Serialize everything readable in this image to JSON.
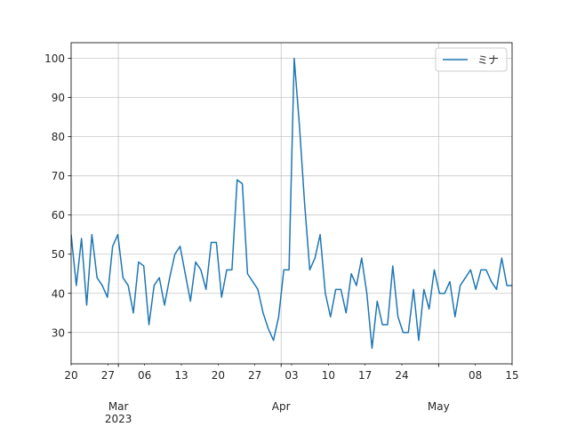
{
  "chart_data": {
    "type": "line",
    "title": "",
    "xlabel": "",
    "ylabel": "",
    "x_start": "2023-02-20",
    "x_end": "2023-05-15",
    "xlim": [
      "2023-02-20",
      "2023-05-15"
    ],
    "ylim": [
      22,
      104
    ],
    "grid": true,
    "legend_position": "top-right",
    "x_minor_ticks": [
      {
        "date": "2023-02-20",
        "label": "20"
      },
      {
        "date": "2023-02-27",
        "label": "27"
      },
      {
        "date": "2023-03-06",
        "label": "06"
      },
      {
        "date": "2023-03-13",
        "label": "13"
      },
      {
        "date": "2023-03-20",
        "label": "20"
      },
      {
        "date": "2023-03-27",
        "label": "27"
      },
      {
        "date": "2023-04-03",
        "label": "03"
      },
      {
        "date": "2023-04-10",
        "label": "10"
      },
      {
        "date": "2023-04-17",
        "label": "17"
      },
      {
        "date": "2023-04-24",
        "label": "24"
      },
      {
        "date": "2023-05-08",
        "label": "08"
      },
      {
        "date": "2023-05-15",
        "label": "15"
      }
    ],
    "x_major_ticks": [
      {
        "date": "2023-03-01",
        "label": "Mar",
        "sublabel": "2023"
      },
      {
        "date": "2023-04-01",
        "label": "Apr",
        "sublabel": ""
      },
      {
        "date": "2023-05-01",
        "label": "May",
        "sublabel": ""
      }
    ],
    "y_ticks": [
      30,
      40,
      50,
      60,
      70,
      80,
      90,
      100
    ],
    "series": [
      {
        "name": "ミナ",
        "color": "#1f77b4",
        "values": [
          55,
          42,
          54,
          37,
          55,
          44,
          42,
          39,
          52,
          55,
          44,
          42,
          35,
          48,
          47,
          32,
          42,
          44,
          37,
          44,
          50,
          52,
          45,
          38,
          48,
          46,
          41,
          53,
          53,
          39,
          46,
          46,
          69,
          68,
          45,
          43,
          41,
          35,
          31,
          28,
          34,
          46,
          46,
          100,
          83,
          63,
          46,
          49,
          55,
          40,
          34,
          41,
          41,
          35,
          45,
          42,
          49,
          40,
          26,
          38,
          32,
          32,
          47,
          34,
          30,
          30,
          41,
          28,
          41,
          36,
          46,
          40,
          40,
          43,
          34,
          42,
          44,
          46,
          41,
          46,
          46,
          43,
          41,
          49,
          42,
          42
        ]
      }
    ]
  }
}
